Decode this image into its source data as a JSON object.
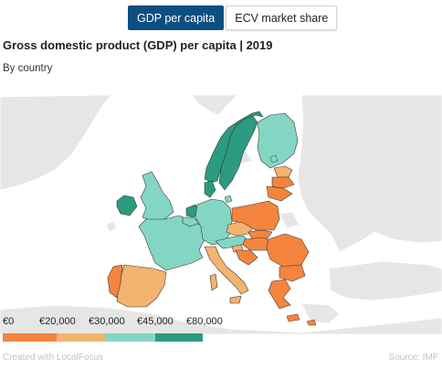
{
  "tabs": [
    {
      "label": "GDP per capita",
      "active": true
    },
    {
      "label": "ECV market share",
      "active": false
    }
  ],
  "title": "Gross domestic product (GDP) per capita | 2019",
  "subtitle": "By country",
  "legend": {
    "labels": [
      "€0",
      "€20,000",
      "€30,000",
      "€45,000",
      "€80,000"
    ],
    "bins": [
      {
        "color": "#f5843e"
      },
      {
        "color": "#f2b46e"
      },
      {
        "color": "#83d6c4"
      },
      {
        "color": "#2a9b80"
      }
    ]
  },
  "colors": {
    "class_1": "#f5843e",
    "class_2": "#f2b46e",
    "class_3": "#83d6c4",
    "class_4": "#2a9b80",
    "no_data": "#e6e6e6",
    "sea": "#ffffff",
    "active_tab": "#0b4f80"
  },
  "footer": {
    "credit": "Created with LocalFocus",
    "source": "Source: IMF"
  }
}
